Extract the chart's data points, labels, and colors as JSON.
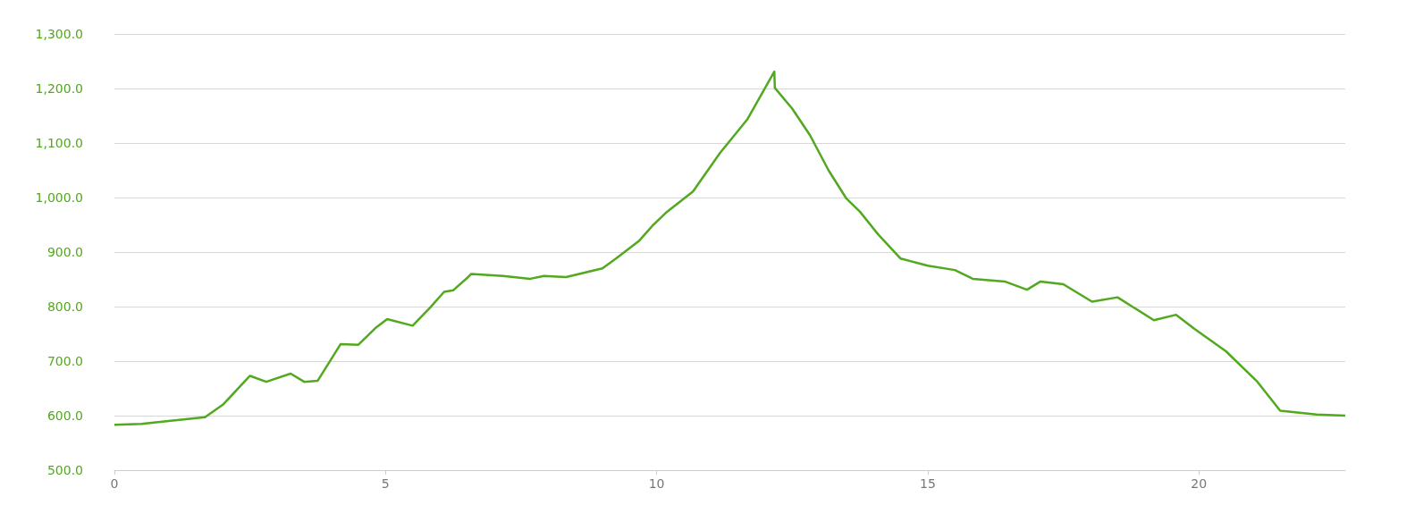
{
  "chart_data": {
    "type": "line",
    "x": [
      0,
      0.5,
      1,
      1.67,
      2,
      2.5,
      2.8,
      3.25,
      3.5,
      3.75,
      4.17,
      4.5,
      4.83,
      5.03,
      5.5,
      5.83,
      6.08,
      6.25,
      6.5,
      6.58,
      7.17,
      7.67,
      7.92,
      8.33,
      9,
      9.25,
      9.67,
      9.92,
      10.17,
      10.67,
      11.17,
      11.67,
      12.17,
      12.18,
      12.5,
      12.83,
      13.17,
      13.5,
      13.75,
      14.08,
      14.5,
      15,
      15.5,
      15.83,
      16.42,
      16.83,
      17.08,
      17.5,
      18.03,
      18.5,
      19.17,
      19.58,
      19.92,
      20.5,
      21.08,
      21.5,
      22.17,
      22.7
    ],
    "series": [
      {
        "color": "#52a81e",
        "values": [
          583,
          585,
          590,
          597,
          620,
          673,
          662,
          677,
          662,
          664,
          731,
          730,
          762,
          777,
          765,
          799,
          827,
          830,
          852,
          860,
          856,
          851,
          856,
          854,
          870,
          888,
          920,
          948,
          972,
          1011,
          1082,
          1143,
          1231,
          1201,
          1163,
          1114,
          1050,
          998,
          974,
          933,
          888,
          875,
          867,
          851,
          846,
          831,
          846,
          841,
          809,
          817,
          775,
          785,
          759,
          718,
          662,
          609,
          602,
          600
        ]
      }
    ],
    "xlim": [
      0,
      22.7
    ],
    "xticks": [
      0,
      5,
      10,
      15,
      20
    ],
    "ylim": [
      500,
      1300
    ],
    "yticks": [
      {
        "value": 500,
        "label": "500.0"
      },
      {
        "value": 600,
        "label": "600.0"
      },
      {
        "value": 700,
        "label": "700.0"
      },
      {
        "value": 800,
        "label": "800.0"
      },
      {
        "value": 900,
        "label": "900.0"
      },
      {
        "value": 1000,
        "label": "1,000.0"
      },
      {
        "value": 1100,
        "label": "1,100.0"
      },
      {
        "value": 1200,
        "label": "1,200.0"
      },
      {
        "value": 1300,
        "label": "1,300.0"
      }
    ],
    "grid": "y",
    "marker": "none",
    "line_style": "solid"
  }
}
